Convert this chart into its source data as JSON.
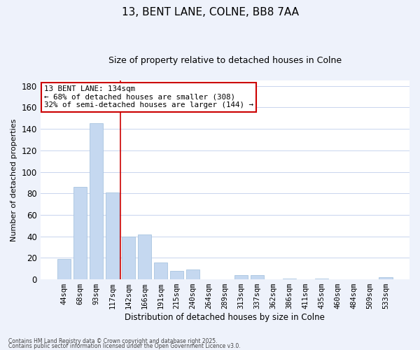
{
  "title1": "13, BENT LANE, COLNE, BB8 7AA",
  "title2": "Size of property relative to detached houses in Colne",
  "xlabel": "Distribution of detached houses by size in Colne",
  "ylabel": "Number of detached properties",
  "categories": [
    "44sqm",
    "68sqm",
    "93sqm",
    "117sqm",
    "142sqm",
    "166sqm",
    "191sqm",
    "215sqm",
    "240sqm",
    "264sqm",
    "289sqm",
    "313sqm",
    "337sqm",
    "362sqm",
    "386sqm",
    "411sqm",
    "435sqm",
    "460sqm",
    "484sqm",
    "509sqm",
    "533sqm"
  ],
  "values": [
    19,
    86,
    145,
    81,
    40,
    42,
    16,
    8,
    9,
    0,
    0,
    4,
    4,
    0,
    1,
    0,
    1,
    0,
    0,
    0,
    2
  ],
  "bar_color": "#c5d8f0",
  "bar_edge_color": "#a8c4e0",
  "vline_color": "#cc0000",
  "annotation_text": "13 BENT LANE: 134sqm\n← 68% of detached houses are smaller (308)\n32% of semi-detached houses are larger (144) →",
  "annotation_box_color": "white",
  "annotation_box_edge_color": "#cc0000",
  "ylim": [
    0,
    185
  ],
  "yticks": [
    0,
    20,
    40,
    60,
    80,
    100,
    120,
    140,
    160,
    180
  ],
  "footer1": "Contains HM Land Registry data © Crown copyright and database right 2025.",
  "footer2": "Contains public sector information licensed under the Open Government Licence v3.0.",
  "bg_color": "#eef2fb",
  "plot_bg_color": "#ffffff",
  "grid_color": "#c8d4ee"
}
